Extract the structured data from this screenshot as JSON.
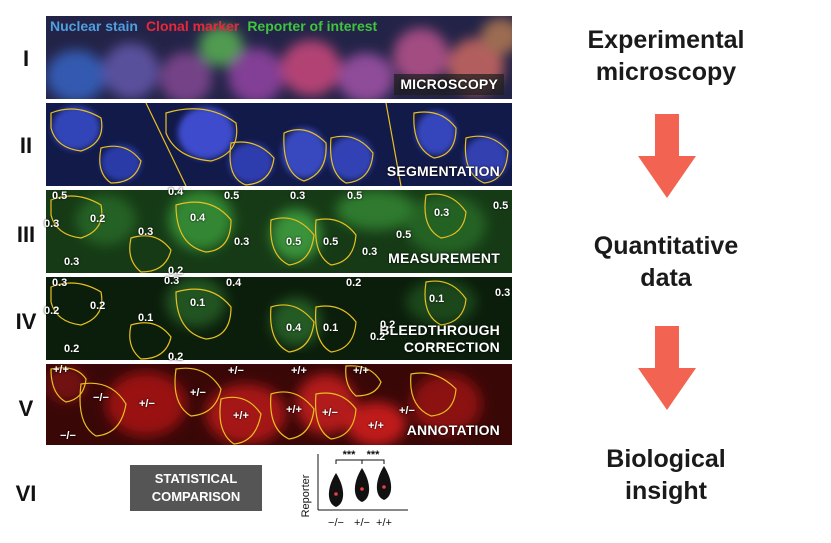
{
  "legend": {
    "items": [
      {
        "text": "Nuclear stain",
        "color": "#4f9fe0"
      },
      {
        "text": "Clonal marker",
        "color": "#e8283a"
      },
      {
        "text": "Reporter of interest",
        "color": "#3ec43e"
      }
    ]
  },
  "rows": [
    {
      "numeral": "I",
      "label": "MICROSCOPY"
    },
    {
      "numeral": "II",
      "label": "SEGMENTATION"
    },
    {
      "numeral": "III",
      "label": "MEASUREMENT"
    },
    {
      "numeral": "IV",
      "label_line1": "BLEEDTHROUGH",
      "label_line2": "CORRECTION"
    },
    {
      "numeral": "V",
      "label": "ANNOTATION"
    },
    {
      "numeral": "VI"
    }
  ],
  "measurement_values": [
    "0.5",
    "0.3",
    "0.2",
    "0.3",
    "0.3",
    "0.4",
    "0.5",
    "0.3",
    "0.5",
    "0.5",
    "0.3",
    "0.5",
    "0.3",
    "0.5",
    "0.3",
    "0.4",
    "0.5",
    "0.2"
  ],
  "corrected_values": [
    "0.3",
    "0.2",
    "0.2",
    "0.1",
    "0.2",
    "0.3",
    "0.4",
    "0.1",
    "0.4",
    "0.1",
    "0.2",
    "0.1",
    "0.3",
    "0.2",
    "0.2",
    "0.2"
  ],
  "genotypes": [
    "+/+",
    "−/−",
    "+/−",
    "+/−",
    "+/−",
    "+/+",
    "+/+",
    "+/+",
    "+/+",
    "+/−",
    "+/−",
    "+/+",
    "−/−"
  ],
  "stat_box": {
    "line1": "STATISTICAL",
    "line2": "COMPARISON"
  },
  "violin_plot": {
    "ylabel": "Reporter",
    "categories": [
      "−/−",
      "+/−",
      "+/+"
    ],
    "significance": [
      "***",
      "***"
    ]
  },
  "steps": [
    {
      "line1": "Experimental",
      "line2": "microscopy"
    },
    {
      "line1": "Quantitative",
      "line2": "data"
    },
    {
      "line1": "Biological",
      "line2": "insight"
    }
  ],
  "colors": {
    "arrow": "#f26451",
    "outline": "#e8c020"
  }
}
